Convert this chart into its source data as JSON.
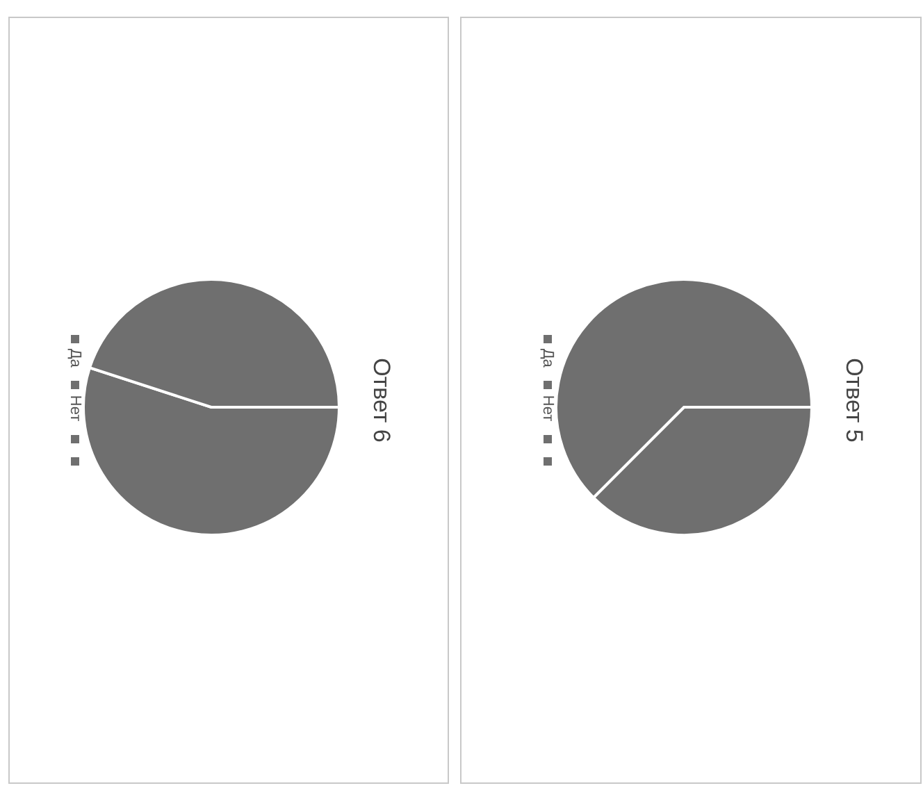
{
  "chart_data": [
    {
      "type": "pie",
      "title": "Ответ 6",
      "categories": [
        "Да",
        "Нет",
        null,
        null
      ],
      "values": [
        55,
        45,
        0,
        0
      ],
      "colors": [
        "#6f6f6f",
        "#6f6f6f",
        "#6f6f6f",
        "#6f6f6f"
      ],
      "legend": "left"
    },
    {
      "type": "pie",
      "title": "Ответ 5",
      "categories": [
        "Да",
        "Нет",
        null,
        null
      ],
      "values": [
        37.5,
        62.5,
        0,
        0
      ],
      "colors": [
        "#6f6f6f",
        "#6f6f6f",
        "#6f6f6f",
        "#6f6f6f"
      ],
      "legend": "left"
    }
  ]
}
